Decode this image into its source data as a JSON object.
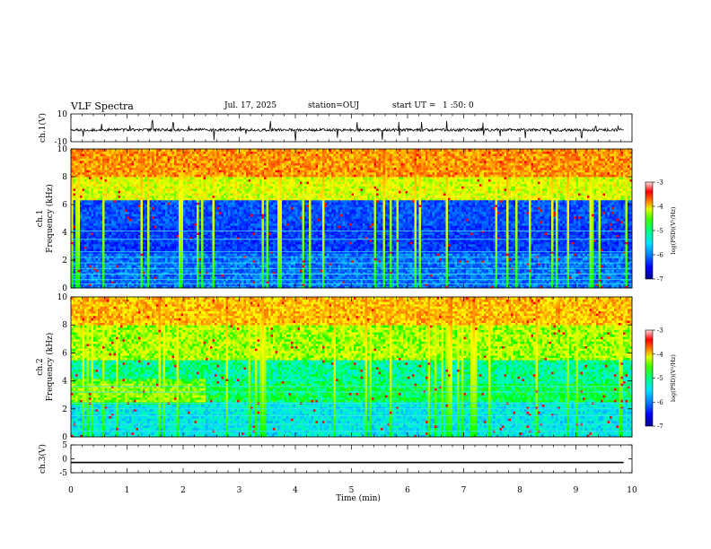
{
  "header": {
    "title": "VLF Spectra",
    "date": "Jul. 17, 2025",
    "station": "station=OUJ",
    "start_label": "start UT =",
    "start_time": "1 :50: 0"
  },
  "colors": {
    "colormap": [
      "#00008c",
      "#0000ff",
      "#0060ff",
      "#00d8ff",
      "#00ffb4",
      "#00ff00",
      "#b4ff00",
      "#ffff00",
      "#ff8c00",
      "#ff0000",
      "#ffffff"
    ]
  },
  "chart_data": [
    {
      "type": "line",
      "id": "ch1-waveform",
      "ylabel": "ch.1(V)",
      "ylim": [
        -10,
        10
      ],
      "yticks": [
        "10",
        "-10"
      ],
      "xlim": [
        0,
        10
      ],
      "baseline": -1.5,
      "noise_amplitude": 1.0,
      "spike_times": [
        0.22,
        0.55,
        1.05,
        1.45,
        1.82,
        2.1,
        2.55,
        3.02,
        3.12,
        3.55,
        4.0,
        4.75,
        5.1,
        5.55,
        5.85,
        6.25,
        6.7,
        7.35,
        7.65,
        8.1,
        8.55,
        9.1,
        9.35,
        9.75
      ]
    },
    {
      "type": "heatmap",
      "id": "ch1-spectrogram",
      "ylabel": "ch.1",
      "ylabel2": "Frequency (kHz)",
      "ylim": [
        0,
        10
      ],
      "yticks": [
        "0",
        "2",
        "4",
        "6",
        "8",
        "10"
      ],
      "xlim": [
        0,
        10
      ],
      "colorbar": {
        "label": "log(PSD)(V²/Hz)",
        "range": [
          -7,
          -3
        ],
        "ticks": [
          "-3",
          "-4",
          "-5",
          "-6",
          "-7"
        ]
      },
      "lines_khz": [
        0.3,
        0.6,
        1.0,
        1.4,
        1.8,
        2.2,
        2.6,
        3.5,
        4.1
      ]
    },
    {
      "type": "heatmap",
      "id": "ch2-spectrogram",
      "ylabel": "ch.2",
      "ylabel2": "Frequency (kHz)",
      "ylim": [
        0,
        10
      ],
      "yticks": [
        "0",
        "2",
        "4",
        "6",
        "8",
        "10"
      ],
      "xlim": [
        0,
        10
      ],
      "colorbar": {
        "label": "log(PSD)(V²/Hz)",
        "range": [
          -7,
          -3
        ],
        "ticks": [
          "-3",
          "-4",
          "-5",
          "-6",
          "-7"
        ]
      },
      "lines_khz": [
        0.4,
        0.9,
        1.5,
        2.0,
        2.4,
        3.2,
        3.6
      ]
    },
    {
      "type": "line",
      "id": "ch3-waveform",
      "ylabel": "ch.3(V)",
      "ylim": [
        -5,
        5
      ],
      "yticks": [
        "5",
        "0",
        "-5"
      ],
      "xlim": [
        0,
        10
      ],
      "constant_value": -1.3
    }
  ],
  "xaxis": {
    "label": "Time (min)",
    "ticks": [
      "0",
      "1",
      "2",
      "3",
      "4",
      "5",
      "6",
      "7",
      "8",
      "9",
      "10"
    ]
  }
}
